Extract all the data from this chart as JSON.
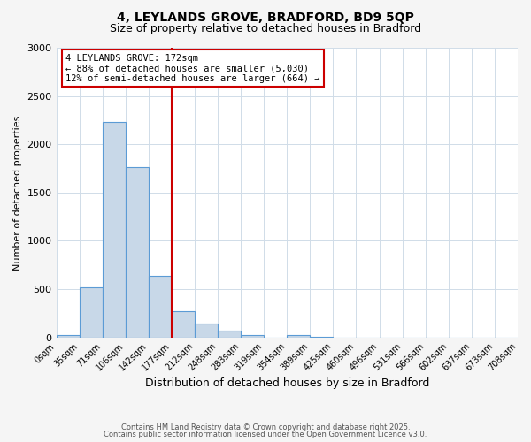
{
  "title1": "4, LEYLANDS GROVE, BRADFORD, BD9 5QP",
  "title2": "Size of property relative to detached houses in Bradford",
  "xlabel": "Distribution of detached houses by size in Bradford",
  "ylabel": "Number of detached properties",
  "footer1": "Contains HM Land Registry data © Crown copyright and database right 2025.",
  "footer2": "Contains public sector information licensed under the Open Government Licence v3.0.",
  "bin_labels": [
    "0sqm",
    "35sqm",
    "71sqm",
    "106sqm",
    "142sqm",
    "177sqm",
    "212sqm",
    "248sqm",
    "283sqm",
    "319sqm",
    "354sqm",
    "389sqm",
    "425sqm",
    "460sqm",
    "496sqm",
    "531sqm",
    "566sqm",
    "602sqm",
    "637sqm",
    "673sqm",
    "708sqm"
  ],
  "bar_values": [
    20,
    520,
    2230,
    1760,
    640,
    270,
    145,
    70,
    25,
    0,
    20,
    5,
    0,
    0,
    0,
    0,
    0,
    0,
    0,
    0
  ],
  "bar_color": "#c8d8e8",
  "bar_edge_color": "#5b9bd5",
  "vline_x_index": 5,
  "vline_color": "#cc0000",
  "annotation_title": "4 LEYLANDS GROVE: 172sqm",
  "annotation_line1": "← 88% of detached houses are smaller (5,030)",
  "annotation_line2": "12% of semi-detached houses are larger (664) →",
  "annotation_box_color": "#cc0000",
  "ylim": [
    0,
    3000
  ],
  "yticks": [
    0,
    500,
    1000,
    1500,
    2000,
    2500,
    3000
  ],
  "background_color": "#f5f5f5",
  "plot_bg_color": "#ffffff",
  "grid_color": "#d0dce8"
}
